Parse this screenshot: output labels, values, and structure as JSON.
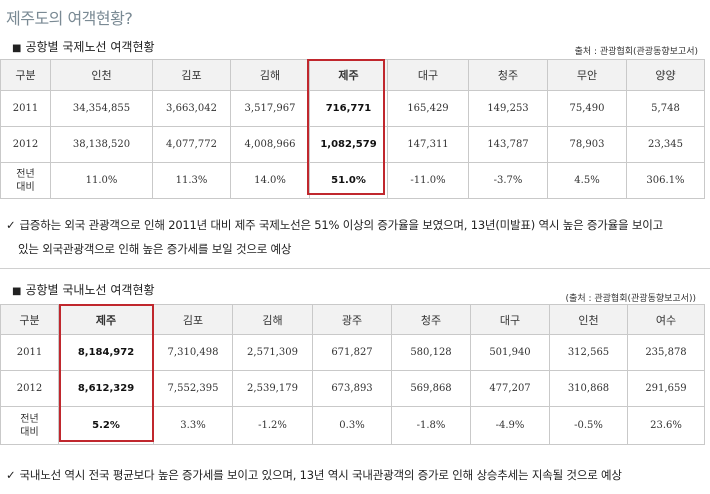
{
  "page_title": "제주도의 여객현황?",
  "intl": {
    "heading": "공항별 국제노선 여객현황",
    "source": "출처 : 관광협회(관광동향보고서)",
    "columns": [
      "구분",
      "인천",
      "김포",
      "김해",
      "제주",
      "대구",
      "청주",
      "무안",
      "양양"
    ],
    "rows": [
      {
        "label": "2011",
        "values": [
          "34,354,855",
          "3,663,042",
          "3,517,967",
          "716,771",
          "165,429",
          "149,253",
          "75,490",
          "5,748"
        ]
      },
      {
        "label": "2012",
        "values": [
          "38,138,520",
          "4,077,772",
          "4,008,966",
          "1,082,579",
          "147,311",
          "143,787",
          "78,903",
          "23,345"
        ]
      },
      {
        "label_line1": "전년",
        "label_line2": "대비",
        "values": [
          "11.0%",
          "11.3%",
          "14.0%",
          "51.0%",
          "-11.0%",
          "-3.7%",
          "4.5%",
          "306.1%"
        ]
      }
    ],
    "note_line1": "급증하는 외국 관광객으로 인해 2011년 대비 제주 국제노선은 51% 이상의 증가율을 보였으며, 13년(미발표) 역시 높은 증가율을 보이고",
    "note_line2": "있는 외국관광객으로 인해 높은 증가세를 보일 것으로 예상"
  },
  "domestic": {
    "heading": "공항별 국내노선 여객현황",
    "source": "(출처 : 관광협회(관광동향보고서))",
    "columns": [
      "구분",
      "제주",
      "김포",
      "김해",
      "광주",
      "청주",
      "대구",
      "인천",
      "여수"
    ],
    "rows": [
      {
        "label": "2011",
        "values": [
          "8,184,972",
          "7,310,498",
          "2,571,309",
          "671,827",
          "580,128",
          "501,940",
          "312,565",
          "235,878"
        ]
      },
      {
        "label": "2012",
        "values": [
          "8,612,329",
          "7,552,395",
          "2,539,179",
          "673,893",
          "569,868",
          "477,207",
          "310,868",
          "291,659"
        ]
      },
      {
        "label_line1": "전년",
        "label_line2": "대비",
        "values": [
          "5.2%",
          "3.3%",
          "-1.2%",
          "0.3%",
          "-1.8%",
          "-4.9%",
          "-0.5%",
          "23.6%"
        ]
      }
    ],
    "note": "국내노선 역시 전국 평균보다 높은 증가세를 보이고 있으며, 13년 역시 국내관광객의 증가로 인해 상승추세는 지속될 것으로 예상"
  },
  "bullet_symbol": "■",
  "check_symbol": "✓",
  "highlight_color": "#c0272d"
}
